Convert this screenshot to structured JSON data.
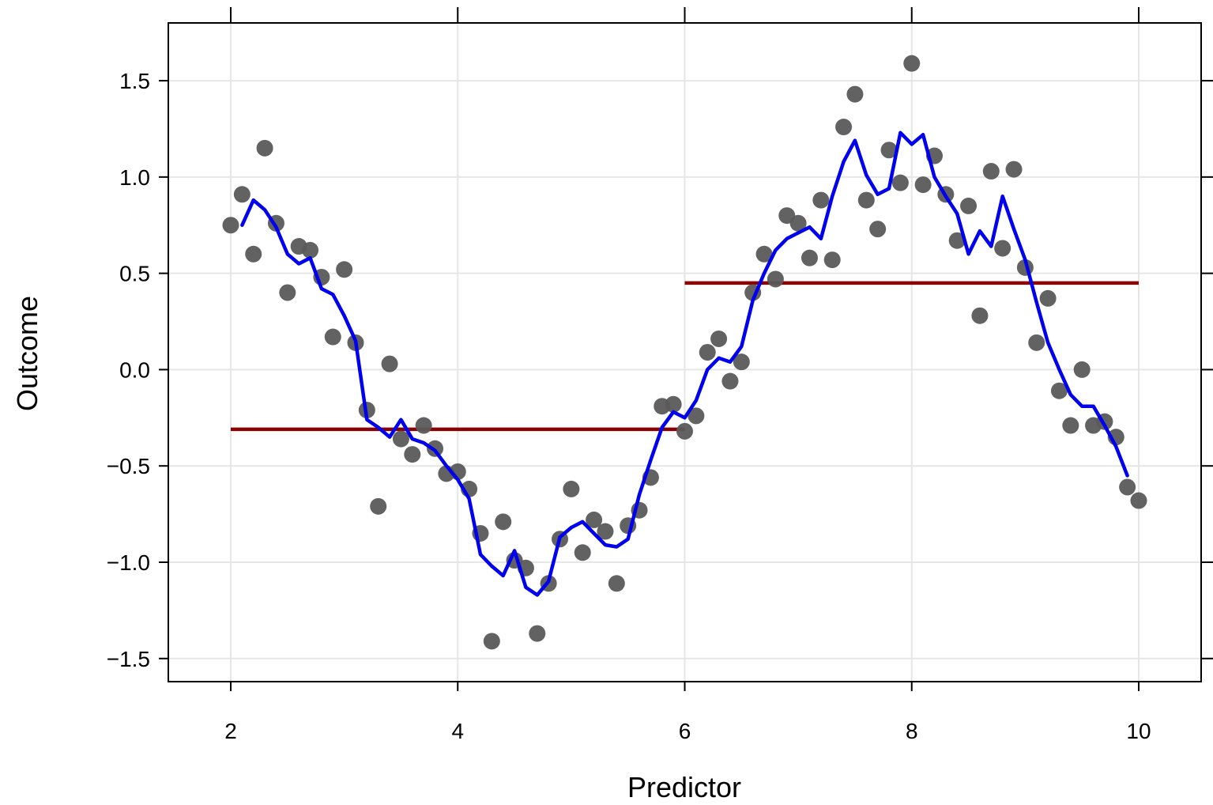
{
  "chart_data": {
    "type": "scatter",
    "title": "",
    "xlabel": "Predictor",
    "ylabel": "Outcome",
    "xlim": [
      1.45,
      10.55
    ],
    "ylim": [
      -1.62,
      1.8
    ],
    "x_ticks": [
      "2",
      "4",
      "6",
      "8",
      "10"
    ],
    "y_ticks": [
      "1.5",
      "1.0",
      "0.5",
      "0.0",
      "−0.5",
      "−1.0",
      "−1.5"
    ],
    "grid": true,
    "legend": "none",
    "colors": {
      "points": "#5a5a5a",
      "smooth_line": "#0000ee",
      "step_fit": "#8b0000",
      "grid": "#e6e6e6"
    },
    "points": {
      "x": [
        2.0,
        2.1,
        2.2,
        2.3,
        2.4,
        2.5,
        2.6,
        2.7,
        2.8,
        2.9,
        3.0,
        3.1,
        3.2,
        3.3,
        3.4,
        3.5,
        3.6,
        3.7,
        3.8,
        3.9,
        4.0,
        4.1,
        4.2,
        4.3,
        4.4,
        4.5,
        4.6,
        4.7,
        4.8,
        4.9,
        5.0,
        5.1,
        5.2,
        5.3,
        5.4,
        5.5,
        5.6,
        5.7,
        5.8,
        5.9,
        6.0,
        6.1,
        6.2,
        6.3,
        6.4,
        6.5,
        6.6,
        6.7,
        6.8,
        6.9,
        7.0,
        7.1,
        7.2,
        7.3,
        7.4,
        7.5,
        7.6,
        7.7,
        7.8,
        7.9,
        8.0,
        8.1,
        8.2,
        8.3,
        8.4,
        8.5,
        8.6,
        8.7,
        8.8,
        8.9,
        9.0,
        9.1,
        9.2,
        9.3,
        9.4,
        9.5,
        9.6,
        9.7,
        9.8,
        9.9,
        10.0
      ],
      "y": [
        0.75,
        0.91,
        0.6,
        1.15,
        0.76,
        0.4,
        0.64,
        0.62,
        0.48,
        0.17,
        0.52,
        0.14,
        -0.21,
        -0.71,
        0.03,
        -0.36,
        -0.44,
        -0.29,
        -0.41,
        -0.54,
        -0.53,
        -0.62,
        -0.85,
        -1.41,
        -0.79,
        -0.99,
        -1.03,
        -1.37,
        -1.11,
        -0.88,
        -0.62,
        -0.95,
        -0.78,
        -0.84,
        -1.11,
        -0.81,
        -0.73,
        -0.56,
        -0.19,
        -0.18,
        -0.32,
        -0.24,
        0.09,
        0.16,
        -0.06,
        0.04,
        0.4,
        0.6,
        0.47,
        0.8,
        0.76,
        0.58,
        0.88,
        0.57,
        1.26,
        1.43,
        0.88,
        0.73,
        1.14,
        0.97,
        1.59,
        0.96,
        1.11,
        0.91,
        0.67,
        0.85,
        0.28,
        1.03,
        0.63,
        1.04,
        0.53,
        0.14,
        0.37,
        -0.11,
        -0.29,
        0.0,
        -0.29,
        -0.27,
        -0.35,
        -0.61,
        -0.68
      ]
    },
    "smooth_line": {
      "x": [
        2.1,
        2.2,
        2.3,
        2.4,
        2.5,
        2.6,
        2.7,
        2.8,
        2.9,
        3.0,
        3.1,
        3.2,
        3.3,
        3.4,
        3.5,
        3.6,
        3.7,
        3.8,
        3.9,
        4.0,
        4.1,
        4.2,
        4.3,
        4.4,
        4.5,
        4.6,
        4.7,
        4.8,
        4.9,
        5.0,
        5.1,
        5.2,
        5.3,
        5.4,
        5.5,
        5.6,
        5.7,
        5.8,
        5.9,
        6.0,
        6.1,
        6.2,
        6.3,
        6.4,
        6.5,
        6.6,
        6.7,
        6.8,
        6.9,
        7.0,
        7.1,
        7.2,
        7.3,
        7.4,
        7.5,
        7.6,
        7.7,
        7.8,
        7.9,
        8.0,
        8.1,
        8.2,
        8.3,
        8.4,
        8.5,
        8.6,
        8.7,
        8.8,
        8.9,
        9.0,
        9.1,
        9.2,
        9.3,
        9.4,
        9.5,
        9.6,
        9.7,
        9.8,
        9.9
      ],
      "y": [
        0.75,
        0.88,
        0.83,
        0.74,
        0.6,
        0.55,
        0.58,
        0.42,
        0.39,
        0.28,
        0.15,
        -0.26,
        -0.3,
        -0.35,
        -0.26,
        -0.36,
        -0.38,
        -0.42,
        -0.5,
        -0.57,
        -0.67,
        -0.96,
        -1.02,
        -1.07,
        -0.94,
        -1.13,
        -1.17,
        -1.1,
        -0.87,
        -0.82,
        -0.79,
        -0.85,
        -0.91,
        -0.92,
        -0.88,
        -0.65,
        -0.47,
        -0.3,
        -0.22,
        -0.25,
        -0.16,
        0.0,
        0.06,
        0.04,
        0.12,
        0.36,
        0.5,
        0.62,
        0.68,
        0.71,
        0.74,
        0.68,
        0.9,
        1.08,
        1.19,
        1.01,
        0.91,
        0.94,
        1.23,
        1.17,
        1.22,
        1.0,
        0.9,
        0.81,
        0.6,
        0.72,
        0.64,
        0.9,
        0.73,
        0.57,
        0.35,
        0.14,
        0.0,
        -0.13,
        -0.19,
        -0.19,
        -0.29,
        -0.4,
        -0.55
      ]
    },
    "step_fit": [
      {
        "x_start": 2.0,
        "x_end": 6.0,
        "y": -0.31
      },
      {
        "x_start": 6.0,
        "x_end": 10.0,
        "y": 0.45
      }
    ]
  }
}
